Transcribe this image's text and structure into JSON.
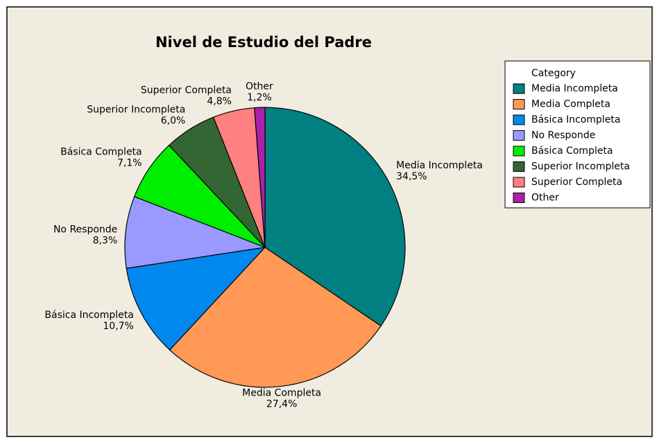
{
  "chart_data": {
    "type": "pie",
    "title": "Nivel de Estudio del Padre",
    "categories": [
      "Media Incompleta",
      "Media Completa",
      "Básica Incompleta",
      "No Responde",
      "Básica Completa",
      "Superior Incompleta",
      "Superior Completa",
      "Other"
    ],
    "values": [
      34.5,
      27.4,
      10.7,
      8.3,
      7.1,
      6.0,
      4.8,
      1.2
    ],
    "value_labels": [
      "34,5%",
      "27,4%",
      "10,7%",
      "8,3%",
      "7,1%",
      "6,0%",
      "4,8%",
      "1,2%"
    ],
    "colors": [
      "#008080",
      "#ff9955",
      "#0088ee",
      "#9999ff",
      "#00ee00",
      "#336633",
      "#ff8080",
      "#aa22aa"
    ],
    "legend_title": "Category",
    "legend": "right"
  }
}
